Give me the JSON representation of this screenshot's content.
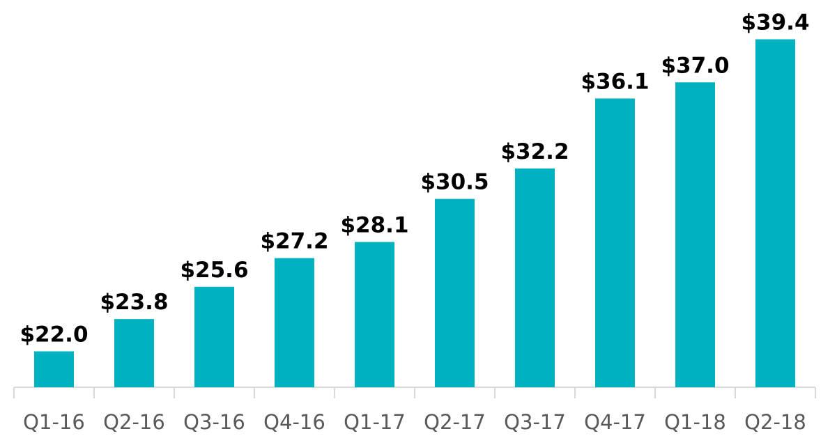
{
  "chart_data": {
    "type": "bar",
    "categories": [
      "Q1-16",
      "Q2-16",
      "Q3-16",
      "Q4-16",
      "Q1-17",
      "Q2-17",
      "Q3-17",
      "Q4-17",
      "Q1-18",
      "Q2-18"
    ],
    "values": [
      22.0,
      23.8,
      25.6,
      27.2,
      28.1,
      30.5,
      32.2,
      36.1,
      37.0,
      39.4
    ],
    "value_labels": [
      "$22.0",
      "$23.8",
      "$25.6",
      "$27.2",
      "$28.1",
      "$30.5",
      "$32.2",
      "$36.1",
      "$37.0",
      "$39.4"
    ],
    "color": "#00b2bf",
    "ylim": [
      20,
      40
    ]
  }
}
